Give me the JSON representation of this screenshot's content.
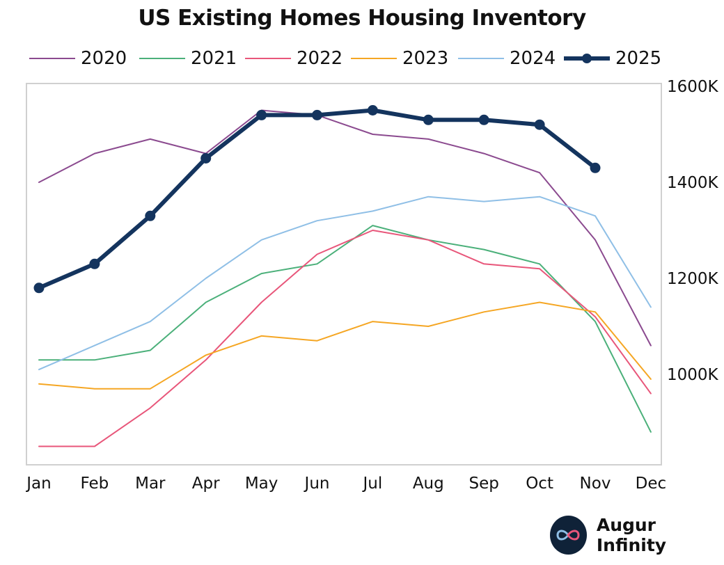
{
  "chart_data": {
    "type": "line",
    "title": "US Existing Homes Housing Inventory",
    "categories": [
      "Jan",
      "Feb",
      "Mar",
      "Apr",
      "May",
      "Jun",
      "Jul",
      "Aug",
      "Sep",
      "Oct",
      "Nov",
      "Dec"
    ],
    "y_ticks": [
      "1600K",
      "1400K",
      "1200K",
      "1000K"
    ],
    "y_tick_values": [
      1600,
      1400,
      1200,
      1000
    ],
    "ylim": [
      810,
      1610
    ],
    "y_axis_side": "right",
    "legend_position": "top",
    "series": [
      {
        "name": "2020",
        "color": "#8b4a8f",
        "values": [
          1400,
          1460,
          1490,
          1460,
          1550,
          1540,
          1500,
          1490,
          1460,
          1420,
          1280,
          1060
        ]
      },
      {
        "name": "2021",
        "color": "#4bb07a",
        "values": [
          1030,
          1030,
          1050,
          1150,
          1210,
          1230,
          1310,
          1280,
          1260,
          1230,
          1110,
          880
        ]
      },
      {
        "name": "2022",
        "color": "#e8567a",
        "values": [
          850,
          850,
          930,
          1030,
          1150,
          1250,
          1300,
          1280,
          1230,
          1220,
          1120,
          960
        ]
      },
      {
        "name": "2023",
        "color": "#f5a623",
        "values": [
          980,
          970,
          970,
          1040,
          1080,
          1070,
          1110,
          1100,
          1130,
          1150,
          1130,
          990
        ]
      },
      {
        "name": "2024",
        "color": "#8fbfe6",
        "values": [
          1010,
          1060,
          1110,
          1200,
          1280,
          1320,
          1340,
          1370,
          1360,
          1370,
          1330,
          1140
        ]
      },
      {
        "name": "2025",
        "color": "#14345e",
        "bold": true,
        "values": [
          1180,
          1230,
          1330,
          1450,
          1540,
          1540,
          1550,
          1530,
          1530,
          1520,
          1430,
          null
        ]
      }
    ]
  },
  "brand": {
    "name": "Augur Infinity",
    "logo": "infinity-icon"
  }
}
